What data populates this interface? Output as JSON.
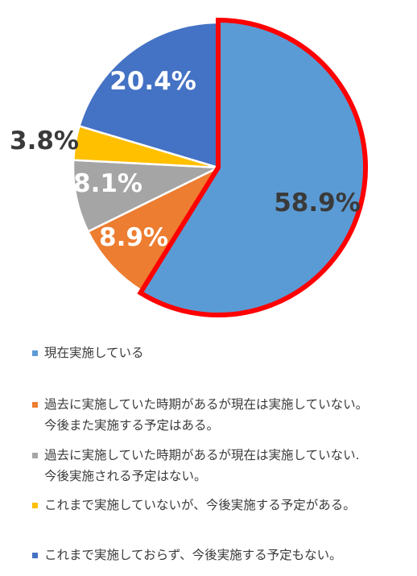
{
  "chart_data": {
    "type": "pie",
    "title": "",
    "start": "12 o'clock",
    "direction": "clockwise",
    "highlighted_slice": 0,
    "highlight_color": "#ff0000",
    "slices": [
      {
        "value": 58.9,
        "label": "58.9%",
        "color": "#5b9bd5",
        "label_color": "#3a3a3a",
        "legend": "現在実施している"
      },
      {
        "value": 8.9,
        "label": "8.9%",
        "color": "#ed7d31",
        "label_color": "#ffffff",
        "legend": "過去に実施していた時期があるが現在は実施していない。\n今後また実施する予定はある。"
      },
      {
        "value": 8.1,
        "label": "8.1%",
        "color": "#a5a5a5",
        "label_color": "#ffffff",
        "legend": "過去に実施していた時期があるが現在は実施していない.\n今後実施される予定はない。"
      },
      {
        "value": 3.8,
        "label": "3.8%",
        "color": "#ffc000",
        "label_color": "#3a3a3a",
        "legend": "これまで実施していないが、今後実施する予定がある。"
      },
      {
        "value": 20.4,
        "label": "20.4%",
        "color": "#4472c4",
        "label_color": "#ffffff",
        "legend": "これまで実施しておらず、今後実施する予定もない。"
      }
    ]
  }
}
